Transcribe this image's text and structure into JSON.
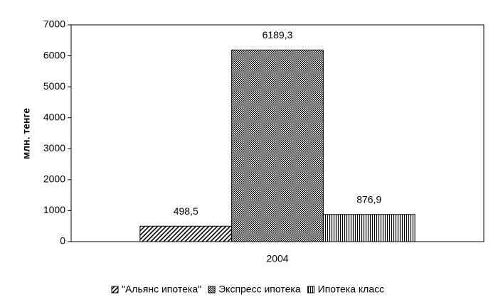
{
  "chart_data": {
    "type": "bar",
    "y_label": "млн. тенге",
    "categories": [
      "2004"
    ],
    "series": [
      {
        "name": "\"Альянс ипотека\"",
        "color": "#000000",
        "pattern": "diagonal",
        "values": [
          498.5
        ],
        "value_labels": [
          "498,5"
        ]
      },
      {
        "name": "Экспресс ипотека",
        "color": "#000000",
        "pattern": "checker",
        "values": [
          6189.3
        ],
        "value_labels": [
          "6189,3"
        ]
      },
      {
        "name": "Ипотека класс",
        "color": "#000000",
        "pattern": "vertical",
        "values": [
          876.9
        ],
        "value_labels": [
          "876,9"
        ]
      }
    ],
    "ylim": [
      0,
      7000
    ],
    "yticks": [
      0,
      1000,
      2000,
      3000,
      4000,
      5000,
      6000,
      7000
    ],
    "grid": false,
    "legend": "bottom"
  }
}
